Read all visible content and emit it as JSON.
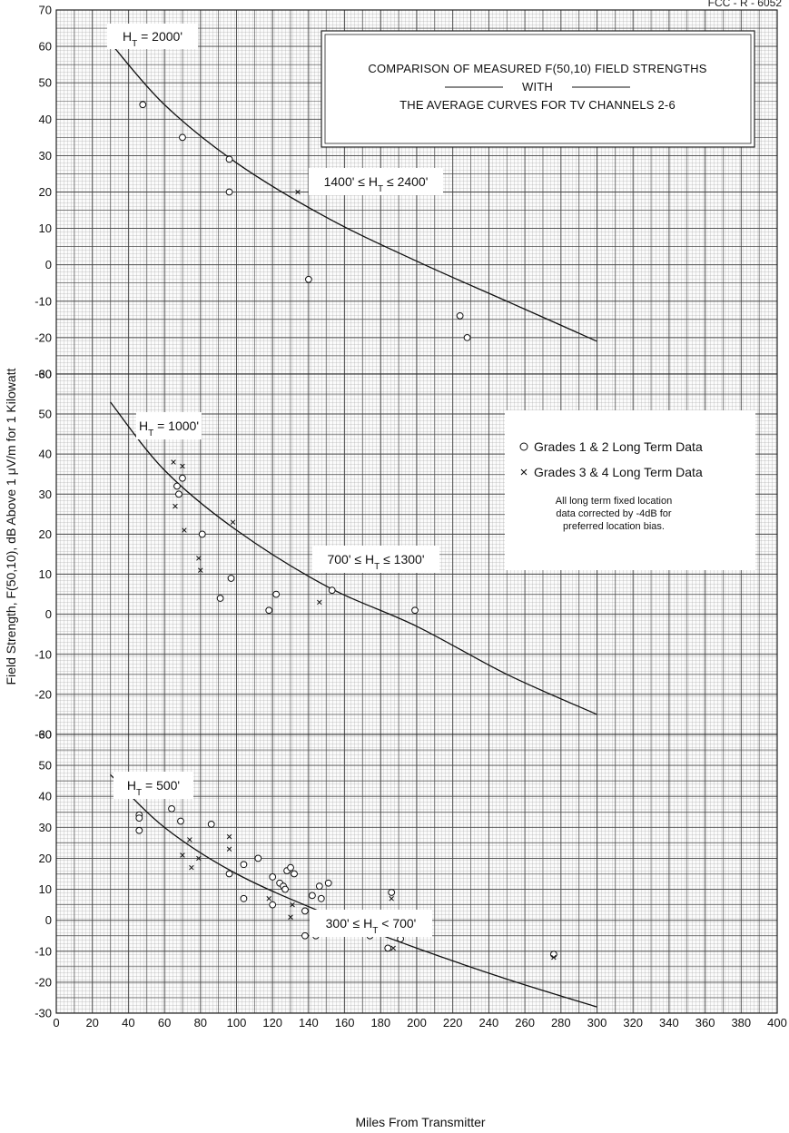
{
  "page_code": "FCC - R - 6052",
  "chart_data": {
    "type": "scatter",
    "title": "COMPARISON OF MEASURED F(50,10) FIELD STRENGTHS",
    "title_mid": "WITH",
    "title_sub": "THE AVERAGE CURVES FOR TV CHANNELS 2-6",
    "xlabel": "Miles From Transmitter",
    "ylabel": "Field Strength, F(50,10), dB Above 1 μV/m for 1 Kilowatt",
    "xlim": [
      0,
      400
    ],
    "x_ticks": [
      "0",
      "20",
      "40",
      "60",
      "80",
      "100",
      "120",
      "140",
      "160",
      "180",
      "200",
      "220",
      "240",
      "260",
      "280",
      "300",
      "320",
      "340",
      "360",
      "380",
      "400"
    ],
    "grid": true,
    "legend": {
      "placement": "middle-right",
      "items": [
        "Grades 1 & 2 Long Term Data",
        "Grades 3 & 4 Long Term Data"
      ],
      "note": [
        "All long term fixed location",
        "data corrected by -4dB for",
        "preferred location bias."
      ]
    },
    "panels": [
      {
        "id": "ht2000",
        "curve_label": "H_T = 2000'",
        "range_label": "1400' ≤ H_T ≤ 2400'",
        "ylim": [
          -30,
          70
        ],
        "y_ticks": [
          "70",
          "60",
          "50",
          "40",
          "30",
          "20",
          "10",
          "0",
          "-10",
          "-20",
          "-30"
        ],
        "curve": [
          [
            30,
            61
          ],
          [
            60,
            44
          ],
          [
            100,
            28
          ],
          [
            150,
            13
          ],
          [
            200,
            1
          ],
          [
            250,
            -10
          ],
          [
            300,
            -21
          ]
        ],
        "grade12": [
          [
            48,
            44
          ],
          [
            70,
            35
          ],
          [
            96,
            29
          ],
          [
            96,
            20
          ],
          [
            140,
            -4
          ],
          [
            224,
            -14
          ],
          [
            228,
            -20
          ]
        ],
        "grade34": [
          [
            134,
            20
          ]
        ]
      },
      {
        "id": "ht1000",
        "curve_label": "H_T = 1000'",
        "range_label": "700' ≤ H_T ≤ 1300'",
        "ylim": [
          -30,
          60
        ],
        "y_ticks": [
          "60",
          "50",
          "40",
          "30",
          "20",
          "10",
          "0",
          "-10",
          "-20",
          "-30"
        ],
        "curve": [
          [
            30,
            53
          ],
          [
            60,
            36
          ],
          [
            100,
            21
          ],
          [
            150,
            7
          ],
          [
            200,
            -3
          ],
          [
            250,
            -15
          ],
          [
            300,
            -25
          ]
        ],
        "grade12": [
          [
            67,
            32
          ],
          [
            68,
            30
          ],
          [
            70,
            34
          ],
          [
            81,
            20
          ],
          [
            91,
            4
          ],
          [
            97,
            9
          ],
          [
            118,
            1
          ],
          [
            122,
            5
          ],
          [
            153,
            6
          ],
          [
            199,
            1
          ]
        ],
        "grade34": [
          [
            65,
            38
          ],
          [
            66,
            27
          ],
          [
            70,
            37
          ],
          [
            71,
            21
          ],
          [
            79,
            14
          ],
          [
            80,
            11
          ],
          [
            98,
            23
          ],
          [
            146,
            3
          ],
          [
            187,
            11
          ]
        ]
      },
      {
        "id": "ht500",
        "curve_label": "H_T = 500'",
        "range_label": "300' ≤ H_T < 700'",
        "ylim": [
          -30,
          60
        ],
        "y_ticks": [
          "60",
          "50",
          "40",
          "30",
          "20",
          "10",
          "0",
          "-10",
          "-20",
          "-30"
        ],
        "curve": [
          [
            30,
            47
          ],
          [
            60,
            30
          ],
          [
            100,
            15
          ],
          [
            150,
            2
          ],
          [
            200,
            -9
          ],
          [
            250,
            -19
          ],
          [
            300,
            -28
          ]
        ],
        "grade12": [
          [
            46,
            42
          ],
          [
            46,
            34
          ],
          [
            46,
            33
          ],
          [
            46,
            29
          ],
          [
            64,
            36
          ],
          [
            69,
            32
          ],
          [
            86,
            31
          ],
          [
            96,
            15
          ],
          [
            104,
            18
          ],
          [
            104,
            7
          ],
          [
            112,
            20
          ],
          [
            120,
            14
          ],
          [
            120,
            5
          ],
          [
            124,
            12
          ],
          [
            126,
            11
          ],
          [
            127,
            10
          ],
          [
            128,
            16
          ],
          [
            130,
            17
          ],
          [
            132,
            15
          ],
          [
            138,
            3
          ],
          [
            138,
            -5
          ],
          [
            142,
            8
          ],
          [
            144,
            -5
          ],
          [
            146,
            11
          ],
          [
            147,
            7
          ],
          [
            151,
            12
          ],
          [
            166,
            -2
          ],
          [
            174,
            0
          ],
          [
            174,
            -5
          ],
          [
            184,
            -9
          ],
          [
            186,
            9
          ],
          [
            186,
            2
          ],
          [
            191,
            -6
          ],
          [
            276,
            -11
          ]
        ],
        "grade34": [
          [
            70,
            21
          ],
          [
            74,
            26
          ],
          [
            75,
            17
          ],
          [
            79,
            20
          ],
          [
            96,
            27
          ],
          [
            96,
            23
          ],
          [
            118,
            7
          ],
          [
            130,
            1
          ],
          [
            131,
            5
          ],
          [
            145,
            2
          ],
          [
            175,
            -2
          ],
          [
            186,
            7
          ],
          [
            187,
            -9
          ],
          [
            276,
            -12
          ]
        ]
      }
    ]
  }
}
